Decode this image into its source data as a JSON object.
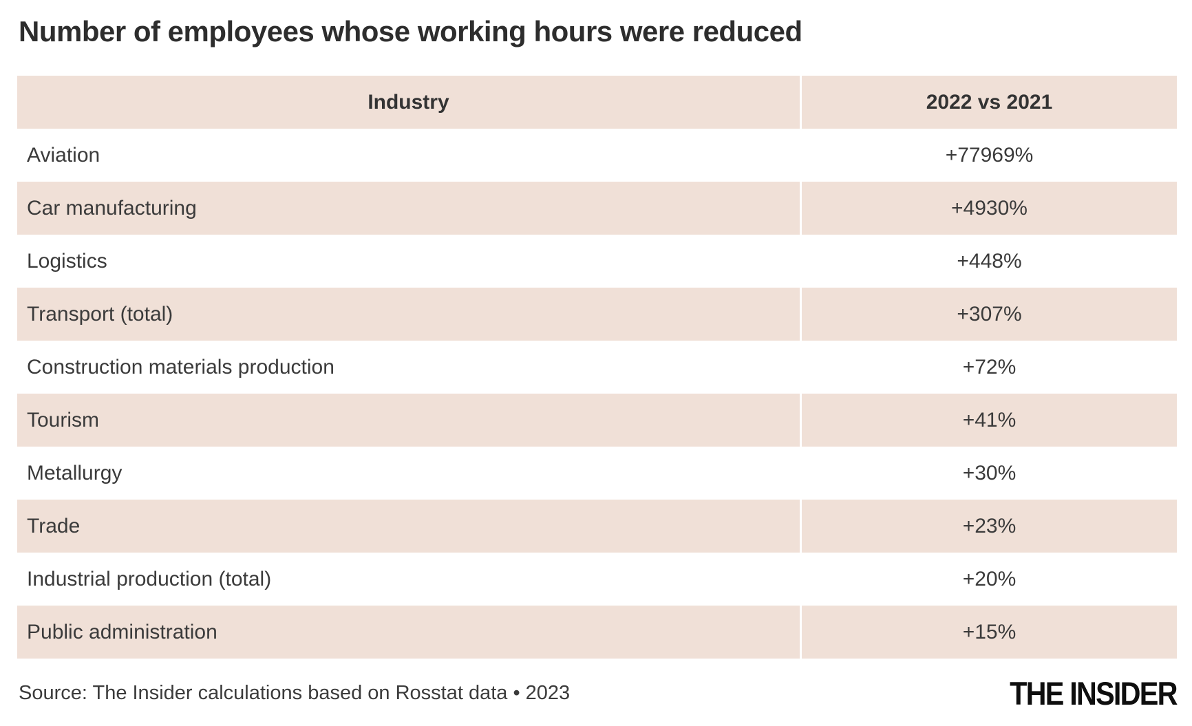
{
  "title": "Number of employees whose working hours were reduced",
  "chart_data": {
    "type": "table",
    "title": "Number of employees whose working hours were reduced",
    "columns": [
      "Industry",
      "2022 vs 2021"
    ],
    "rows": [
      {
        "industry": "Aviation",
        "change": "+77969%"
      },
      {
        "industry": "Car manufacturing",
        "change": "+4930%"
      },
      {
        "industry": "Logistics",
        "change": "+448%"
      },
      {
        "industry": "Transport (total)",
        "change": "+307%"
      },
      {
        "industry": "Construction materials production",
        "change": "+72%"
      },
      {
        "industry": "Tourism",
        "change": "+41%"
      },
      {
        "industry": "Metallurgy",
        "change": "+30%"
      },
      {
        "industry": "Trade",
        "change": "+23%"
      },
      {
        "industry": "Industrial production (total)",
        "change": "+20%"
      },
      {
        "industry": "Public administration",
        "change": "+15%"
      }
    ],
    "values_numeric_pct_change": [
      77969,
      4930,
      448,
      307,
      72,
      41,
      30,
      23,
      20,
      15
    ],
    "source": "Source: The Insider calculations based on Rosstat data • 2023",
    "layout": {
      "striped_rows": "alternating",
      "value_column_alignment": "center",
      "grid": "off"
    }
  },
  "header": {
    "col_industry": "Industry",
    "col_change": "2022 vs 2021"
  },
  "footer": {
    "source": "Source: The Insider calculations based on Rosstat data • 2023",
    "brand": "THE INSIDER"
  },
  "colors": {
    "stripe": "#f0e0d7",
    "background": "#ffffff",
    "text": "#3b3b3b",
    "title": "#2d2d2d",
    "logo": "#0e0e0e"
  }
}
